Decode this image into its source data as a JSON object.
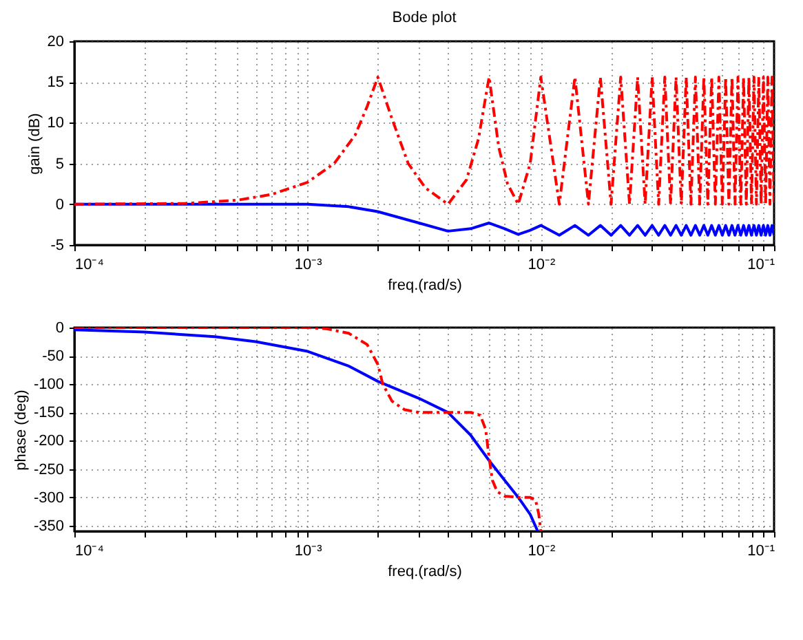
{
  "chart_data": [
    {
      "type": "line",
      "title": "Bode plot",
      "xlabel": "freq.(rad/s)",
      "ylabel": "gain (dB)",
      "log": "x",
      "grid": true,
      "xlim": [
        0.0001,
        0.1
      ],
      "xticks": [
        {
          "value": 0.0001,
          "label": "10⁻⁴"
        },
        {
          "value": 0.0002,
          "label": null
        },
        {
          "value": 0.0003,
          "label": null
        },
        {
          "value": 0.0004,
          "label": null
        },
        {
          "value": 0.0005,
          "label": null
        },
        {
          "value": 0.0006,
          "label": null
        },
        {
          "value": 0.0007,
          "label": null
        },
        {
          "value": 0.0008,
          "label": null
        },
        {
          "value": 0.0009,
          "label": null
        },
        {
          "value": 0.001,
          "label": "10⁻³"
        },
        {
          "value": 0.002,
          "label": null
        },
        {
          "value": 0.003,
          "label": null
        },
        {
          "value": 0.004,
          "label": null
        },
        {
          "value": 0.005,
          "label": null
        },
        {
          "value": 0.006,
          "label": null
        },
        {
          "value": 0.007,
          "label": null
        },
        {
          "value": 0.008,
          "label": null
        },
        {
          "value": 0.009,
          "label": null
        },
        {
          "value": 0.01,
          "label": "10⁻²"
        },
        {
          "value": 0.02,
          "label": null
        },
        {
          "value": 0.03,
          "label": null
        },
        {
          "value": 0.04,
          "label": null
        },
        {
          "value": 0.05,
          "label": null
        },
        {
          "value": 0.06,
          "label": null
        },
        {
          "value": 0.07,
          "label": null
        },
        {
          "value": 0.08,
          "label": null
        },
        {
          "value": 0.09,
          "label": null
        },
        {
          "value": 0.1,
          "label": "10⁻¹"
        }
      ],
      "ylim": [
        -5,
        20
      ],
      "yticks": [
        -5,
        0,
        5,
        10,
        15,
        20
      ],
      "series": [
        {
          "color": "#0000ff",
          "line_style": "solid",
          "x": [
            0.0001,
            0.0005,
            0.001,
            0.0015,
            0.002,
            0.003,
            0.004,
            0.005,
            0.006,
            0.007,
            0.008,
            0.009,
            0.01,
            0.012,
            0.014,
            0.016,
            0.018,
            0.02,
            0.022,
            0.024,
            0.026,
            0.028,
            0.03,
            0.032,
            0.034,
            0.036,
            0.038,
            0.04,
            0.042,
            0.044,
            0.046,
            0.048,
            0.05,
            0.052,
            0.054,
            0.056,
            0.058,
            0.06,
            0.062,
            0.064,
            0.066,
            0.068,
            0.07,
            0.072,
            0.074,
            0.076,
            0.078,
            0.08,
            0.082,
            0.084,
            0.086,
            0.088,
            0.09,
            0.092,
            0.094,
            0.096,
            0.098,
            0.1
          ],
          "values": [
            0,
            0,
            0,
            -0.3,
            -0.9,
            -2.3,
            -3.3,
            -3,
            -2.3,
            -3,
            -3.7,
            -3.2,
            -2.6,
            -3.8,
            -2.6,
            -3.8,
            -2.6,
            -3.8,
            -2.6,
            -3.8,
            -2.6,
            -3.8,
            -2.6,
            -3.8,
            -2.6,
            -3.8,
            -2.6,
            -3.8,
            -2.6,
            -3.8,
            -2.6,
            -3.8,
            -2.6,
            -3.8,
            -2.6,
            -3.8,
            -2.6,
            -3.8,
            -2.6,
            -3.8,
            -2.6,
            -3.8,
            -2.6,
            -3.8,
            -2.6,
            -3.8,
            -2.6,
            -3.8,
            -2.6,
            -3.8,
            -2.6,
            -3.8,
            -2.6,
            -3.8,
            -2.6,
            -3.8,
            -2.6,
            -3.8
          ]
        },
        {
          "color": "#ff0000",
          "line_style": "dashed",
          "x": [
            0.0001,
            0.0003,
            0.0005,
            0.0007,
            0.001,
            0.0013,
            0.0016,
            0.0018,
            0.002,
            0.0023,
            0.0027,
            0.0032,
            0.004,
            0.0048,
            0.0054,
            0.006,
            0.0066,
            0.0072,
            0.008,
            0.009,
            0.01,
            0.012,
            0.014,
            0.016,
            0.018,
            0.02,
            0.022,
            0.024,
            0.026,
            0.028,
            0.03,
            0.032,
            0.034,
            0.036,
            0.038,
            0.04,
            0.042,
            0.044,
            0.046,
            0.048,
            0.05,
            0.052,
            0.054,
            0.056,
            0.058,
            0.06,
            0.062,
            0.064,
            0.066,
            0.068,
            0.07,
            0.072,
            0.074,
            0.076,
            0.078,
            0.08,
            0.082,
            0.084,
            0.086,
            0.088,
            0.09,
            0.092,
            0.094,
            0.096,
            0.098,
            0.1
          ],
          "values": [
            0,
            0.1,
            0.5,
            1.2,
            2.7,
            5,
            8.5,
            12,
            15.6,
            10.5,
            5,
            2,
            0,
            3,
            8,
            15.6,
            7,
            2.5,
            0,
            5,
            15.6,
            0,
            15.6,
            0,
            15.6,
            0,
            15.6,
            0,
            15.6,
            0,
            15.6,
            0,
            15.6,
            0,
            15.6,
            0,
            15.6,
            0,
            15.6,
            0,
            15.6,
            0,
            15.6,
            0,
            15.6,
            0,
            15.6,
            0,
            15.6,
            0,
            15.6,
            0,
            15.6,
            0,
            15.6,
            0,
            15.6,
            0,
            15.6,
            0,
            15.6,
            0,
            15.6,
            0,
            15.6,
            0
          ]
        }
      ]
    },
    {
      "type": "line",
      "xlabel": "freq.(rad/s)",
      "ylabel": "phase (deg)",
      "log": "x",
      "grid": true,
      "xlim": [
        0.0001,
        0.1
      ],
      "xticks": [
        {
          "value": 0.0001,
          "label": "10⁻⁴"
        },
        {
          "value": 0.0002,
          "label": null
        },
        {
          "value": 0.0003,
          "label": null
        },
        {
          "value": 0.0004,
          "label": null
        },
        {
          "value": 0.0005,
          "label": null
        },
        {
          "value": 0.0006,
          "label": null
        },
        {
          "value": 0.0007,
          "label": null
        },
        {
          "value": 0.0008,
          "label": null
        },
        {
          "value": 0.0009,
          "label": null
        },
        {
          "value": 0.001,
          "label": "10⁻³"
        },
        {
          "value": 0.002,
          "label": null
        },
        {
          "value": 0.003,
          "label": null
        },
        {
          "value": 0.004,
          "label": null
        },
        {
          "value": 0.005,
          "label": null
        },
        {
          "value": 0.006,
          "label": null
        },
        {
          "value": 0.007,
          "label": null
        },
        {
          "value": 0.008,
          "label": null
        },
        {
          "value": 0.009,
          "label": null
        },
        {
          "value": 0.01,
          "label": "10⁻²"
        },
        {
          "value": 0.02,
          "label": null
        },
        {
          "value": 0.03,
          "label": null
        },
        {
          "value": 0.04,
          "label": null
        },
        {
          "value": 0.05,
          "label": null
        },
        {
          "value": 0.06,
          "label": null
        },
        {
          "value": 0.07,
          "label": null
        },
        {
          "value": 0.08,
          "label": null
        },
        {
          "value": 0.09,
          "label": null
        },
        {
          "value": 0.1,
          "label": "10⁻¹"
        }
      ],
      "ylim": [
        -360,
        0
      ],
      "yticks": [
        -350,
        -300,
        -250,
        -200,
        -150,
        -100,
        -50,
        0
      ],
      "series": [
        {
          "color": "#0000ff",
          "line_style": "solid",
          "x": [
            0.0001,
            0.0002,
            0.0004,
            0.0006,
            0.001,
            0.0015,
            0.002,
            0.003,
            0.004,
            0.005,
            0.006,
            0.007,
            0.008,
            0.009,
            0.0097
          ],
          "values": [
            -4,
            -8,
            -16,
            -25,
            -42,
            -68,
            -95,
            -125,
            -150,
            -190,
            -235,
            -270,
            -300,
            -330,
            -360
          ]
        },
        {
          "color": "#ff0000",
          "line_style": "dashed",
          "x": [
            0.0001,
            0.0005,
            0.001,
            0.0012,
            0.0015,
            0.0018,
            0.002,
            0.0021,
            0.0023,
            0.0026,
            0.003,
            0.004,
            0.005,
            0.0055,
            0.0058,
            0.006,
            0.0062,
            0.0065,
            0.007,
            0.008,
            0.009,
            0.0095,
            0.0098,
            0.01
          ],
          "values": [
            0,
            0,
            0,
            -2,
            -10,
            -30,
            -65,
            -100,
            -130,
            -145,
            -150,
            -150,
            -150,
            -155,
            -180,
            -230,
            -270,
            -290,
            -298,
            -300,
            -300,
            -305,
            -330,
            -360
          ]
        }
      ]
    }
  ]
}
